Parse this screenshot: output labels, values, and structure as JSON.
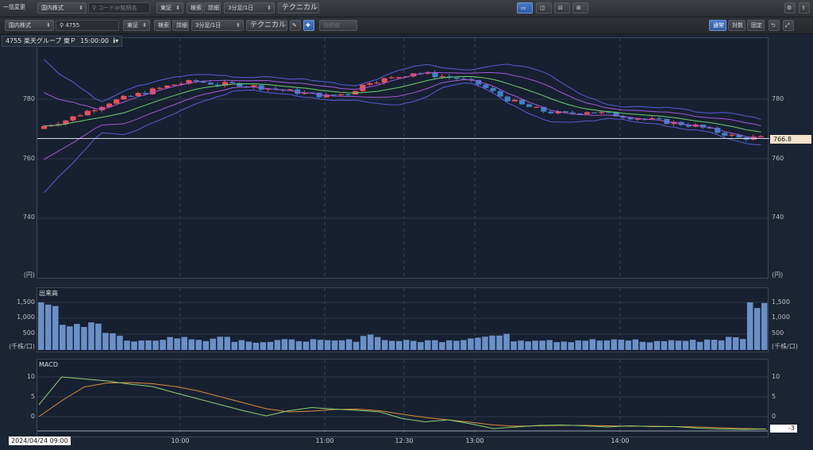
{
  "topbar": {
    "bulk_change": "一括変更",
    "market": "国内株式",
    "search_placeholder": "コードor銘柄名",
    "exchange": "東証",
    "search": "検索",
    "detail": "詳細",
    "interval": "3分足/1日",
    "technical": "テクニカル"
  },
  "toolbar": {
    "market": "国内株式",
    "code": "4755",
    "exchange": "東証",
    "search": "検索",
    "detail": "詳細",
    "interval": "3分足/1日",
    "technical": "テクニカル",
    "indicator_value": "指標値",
    "mode_normal": "通常",
    "mode_log": "対数",
    "mode_fixed": "固定"
  },
  "header": {
    "stock": "4755 楽天グループ 東Ｐ",
    "time": "15:00:00"
  },
  "price_axis": {
    "ticks": [
      "780",
      "760",
      "740"
    ],
    "unit": "(円)",
    "current": "766.8"
  },
  "volume": {
    "title": "出来高",
    "ticks": [
      "1,500",
      "1,000",
      "500"
    ],
    "unit": "(千株/口)"
  },
  "macd": {
    "title": "MACD",
    "ticks": [
      "10",
      "5",
      "0"
    ],
    "current": "-3"
  },
  "x_axis": {
    "start": "2024/04/24 09:00",
    "labels": [
      "10:00",
      "11:00",
      "12:30",
      "13:00",
      "14:00"
    ]
  },
  "colors": {
    "up": "#e8505b",
    "down": "#3f80c4",
    "bb_outer": "#5b5bd8",
    "bb_mid": "#a658d8",
    "ma": "#6fcf6f",
    "macd_line": "#8fd070",
    "signal_line": "#e08a3a",
    "volume": "#6b8fc8"
  },
  "chart_data": {
    "type": "candlestick",
    "price_range": [
      725,
      795
    ],
    "current_price": 766.8,
    "close_path": [
      771,
      773,
      776,
      779,
      781,
      783,
      785,
      786,
      785,
      785,
      784,
      783,
      782,
      781,
      782,
      786,
      787,
      789,
      788,
      787,
      785,
      781,
      778,
      776,
      775,
      776,
      775,
      774,
      773,
      772,
      771,
      769,
      767,
      767
    ],
    "volume": [
      1500,
      860,
      760,
      520,
      300,
      320,
      400,
      320,
      420,
      300,
      260,
      300,
      310,
      280,
      300,
      470,
      300,
      280,
      290,
      330,
      420,
      450,
      310,
      330,
      280,
      310,
      300,
      310,
      260,
      300,
      290,
      330,
      380,
      1500
    ],
    "volume_range": [
      0,
      1700
    ],
    "macd": [
      3,
      10,
      9.5,
      9,
      8.2,
      7.6,
      6,
      4.5,
      3,
      1.5,
      0.2,
      1.5,
      2.3,
      1.9,
      1.6,
      1.2,
      -0.5,
      -1.3,
      -0.8,
      -1.8,
      -3,
      -2.6,
      -2.2,
      -2.1,
      -2.3,
      -2.6,
      -2.3,
      -2.5,
      -2.5,
      -2.9,
      -3.1,
      -3.2,
      -3.1
    ],
    "signal": [
      0,
      4,
      7.5,
      8.5,
      8.6,
      8.3,
      7.6,
      6.5,
      5,
      3.5,
      2,
      1.2,
      1.4,
      1.8,
      1.9,
      1.5,
      0.6,
      -0.2,
      -0.8,
      -1.4,
      -2.1,
      -2.4,
      -2.3,
      -2.2,
      -2.2,
      -2.3,
      -2.4,
      -2.4,
      -2.5,
      -2.6,
      -2.8,
      -3.0,
      -3.1
    ],
    "macd_range": [
      -4.5,
      12
    ]
  }
}
